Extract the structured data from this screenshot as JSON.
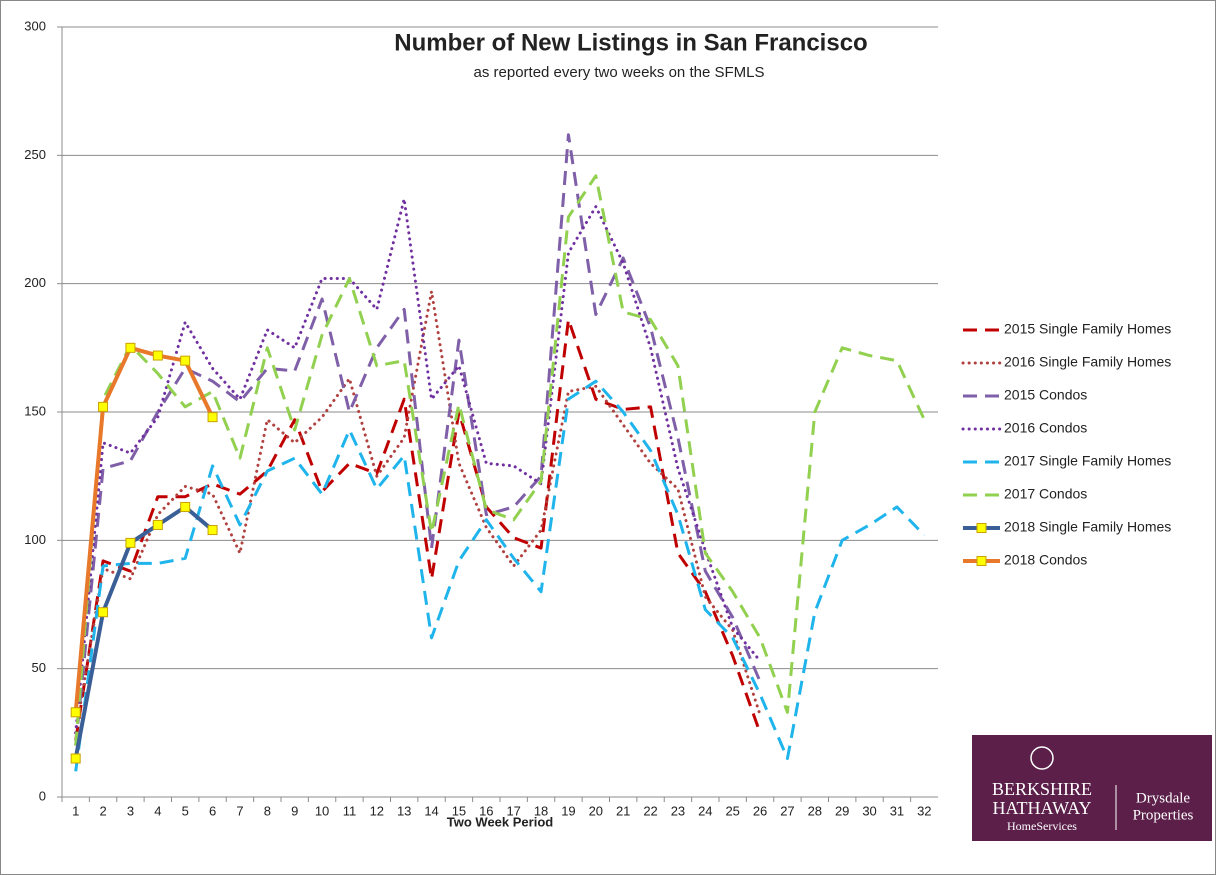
{
  "chart_data": {
    "type": "line",
    "title": "Number of New Listings in San Francisco",
    "subtitle": "as reported every two weeks on the SFMLS",
    "x_label": "Two Week Period",
    "categories": [
      "1",
      "2",
      "3",
      "4",
      "5",
      "6",
      "7",
      "8",
      "9",
      "10",
      "11",
      "12",
      "13",
      "14",
      "15",
      "16",
      "17",
      "18",
      "19",
      "20",
      "21",
      "22",
      "23",
      "24",
      "25",
      "26",
      "27",
      "28",
      "29",
      "30",
      "31",
      "32"
    ],
    "ylim": [
      0,
      300
    ],
    "yticks": [
      0,
      50,
      100,
      150,
      200,
      250,
      300
    ],
    "grid": true,
    "legend": "right",
    "series": [
      {
        "name": "2015 Single Family Homes",
        "color": "#c00000",
        "style": "dashed",
        "markers": false,
        "values": [
          22,
          92,
          88,
          117,
          117,
          122,
          118,
          127,
          147,
          119,
          130,
          126,
          155,
          85,
          150,
          113,
          101,
          97,
          186,
          155,
          151,
          152,
          95,
          80,
          55,
          25,
          null,
          null,
          null,
          null,
          null,
          null
        ]
      },
      {
        "name": "2016 Single Family Homes",
        "color": "#b0413e",
        "style": "dotted",
        "markers": false,
        "values": [
          25,
          89,
          85,
          110,
          121,
          118,
          95,
          147,
          138,
          148,
          163,
          125,
          140,
          197,
          130,
          105,
          90,
          104,
          158,
          160,
          145,
          130,
          120,
          78,
          65,
          32,
          null,
          null,
          null,
          null,
          null,
          null
        ]
      },
      {
        "name": "2015 Condos",
        "color": "#7f5fa8",
        "style": "dashed",
        "markers": false,
        "values": [
          20,
          128,
          131,
          150,
          167,
          162,
          154,
          167,
          166,
          194,
          150,
          175,
          190,
          97,
          178,
          110,
          113,
          125,
          258,
          188,
          210,
          183,
          140,
          88,
          70,
          45,
          null,
          null,
          null,
          null,
          null,
          null
        ]
      },
      {
        "name": "2016 Condos",
        "color": "#7030a0",
        "style": "dotted",
        "markers": false,
        "values": [
          25,
          138,
          134,
          148,
          185,
          167,
          155,
          182,
          175,
          202,
          202,
          190,
          233,
          155,
          168,
          130,
          129,
          122,
          212,
          230,
          208,
          175,
          128,
          96,
          66,
          53,
          null,
          null,
          null,
          null,
          null,
          null
        ]
      },
      {
        "name": "2017 Single Family Homes",
        "color": "#1fb4ec",
        "style": "dashed",
        "markers": false,
        "values": [
          10,
          90,
          91,
          91,
          93,
          129,
          106,
          127,
          132,
          118,
          143,
          120,
          133,
          62,
          92,
          108,
          93,
          80,
          155,
          162,
          150,
          135,
          110,
          73,
          62,
          40,
          15,
          72,
          100,
          106,
          113,
          102
        ]
      },
      {
        "name": "2017 Condos",
        "color": "#92d050",
        "style": "dashed",
        "markers": false,
        "values": [
          20,
          155,
          176,
          165,
          152,
          158,
          132,
          175,
          143,
          180,
          202,
          168,
          170,
          103,
          153,
          112,
          108,
          123,
          226,
          242,
          189,
          186,
          168,
          95,
          80,
          62,
          33,
          150,
          175,
          172,
          170,
          147
        ]
      },
      {
        "name": "2018 Single Family Homes",
        "color": "#3a5f96",
        "style": "solid",
        "markers": true,
        "values": [
          15,
          72,
          99,
          106,
          113,
          104,
          null,
          null,
          null,
          null,
          null,
          null,
          null,
          null,
          null,
          null,
          null,
          null,
          null,
          null,
          null,
          null,
          null,
          null,
          null,
          null,
          null,
          null,
          null,
          null,
          null,
          null
        ]
      },
      {
        "name": "2018 Condos",
        "color": "#e8782a",
        "style": "solid",
        "markers": true,
        "values": [
          33,
          152,
          175,
          172,
          170,
          148,
          null,
          null,
          null,
          null,
          null,
          null,
          null,
          null,
          null,
          null,
          null,
          null,
          null,
          null,
          null,
          null,
          null,
          null,
          null,
          null,
          null,
          null,
          null,
          null,
          null,
          null
        ]
      }
    ]
  },
  "logo": {
    "line1": "BERKSHIRE",
    "line2": "HATHAWAY",
    "line3": "HomeServices",
    "line4": "Drysdale",
    "line5": "Properties"
  }
}
